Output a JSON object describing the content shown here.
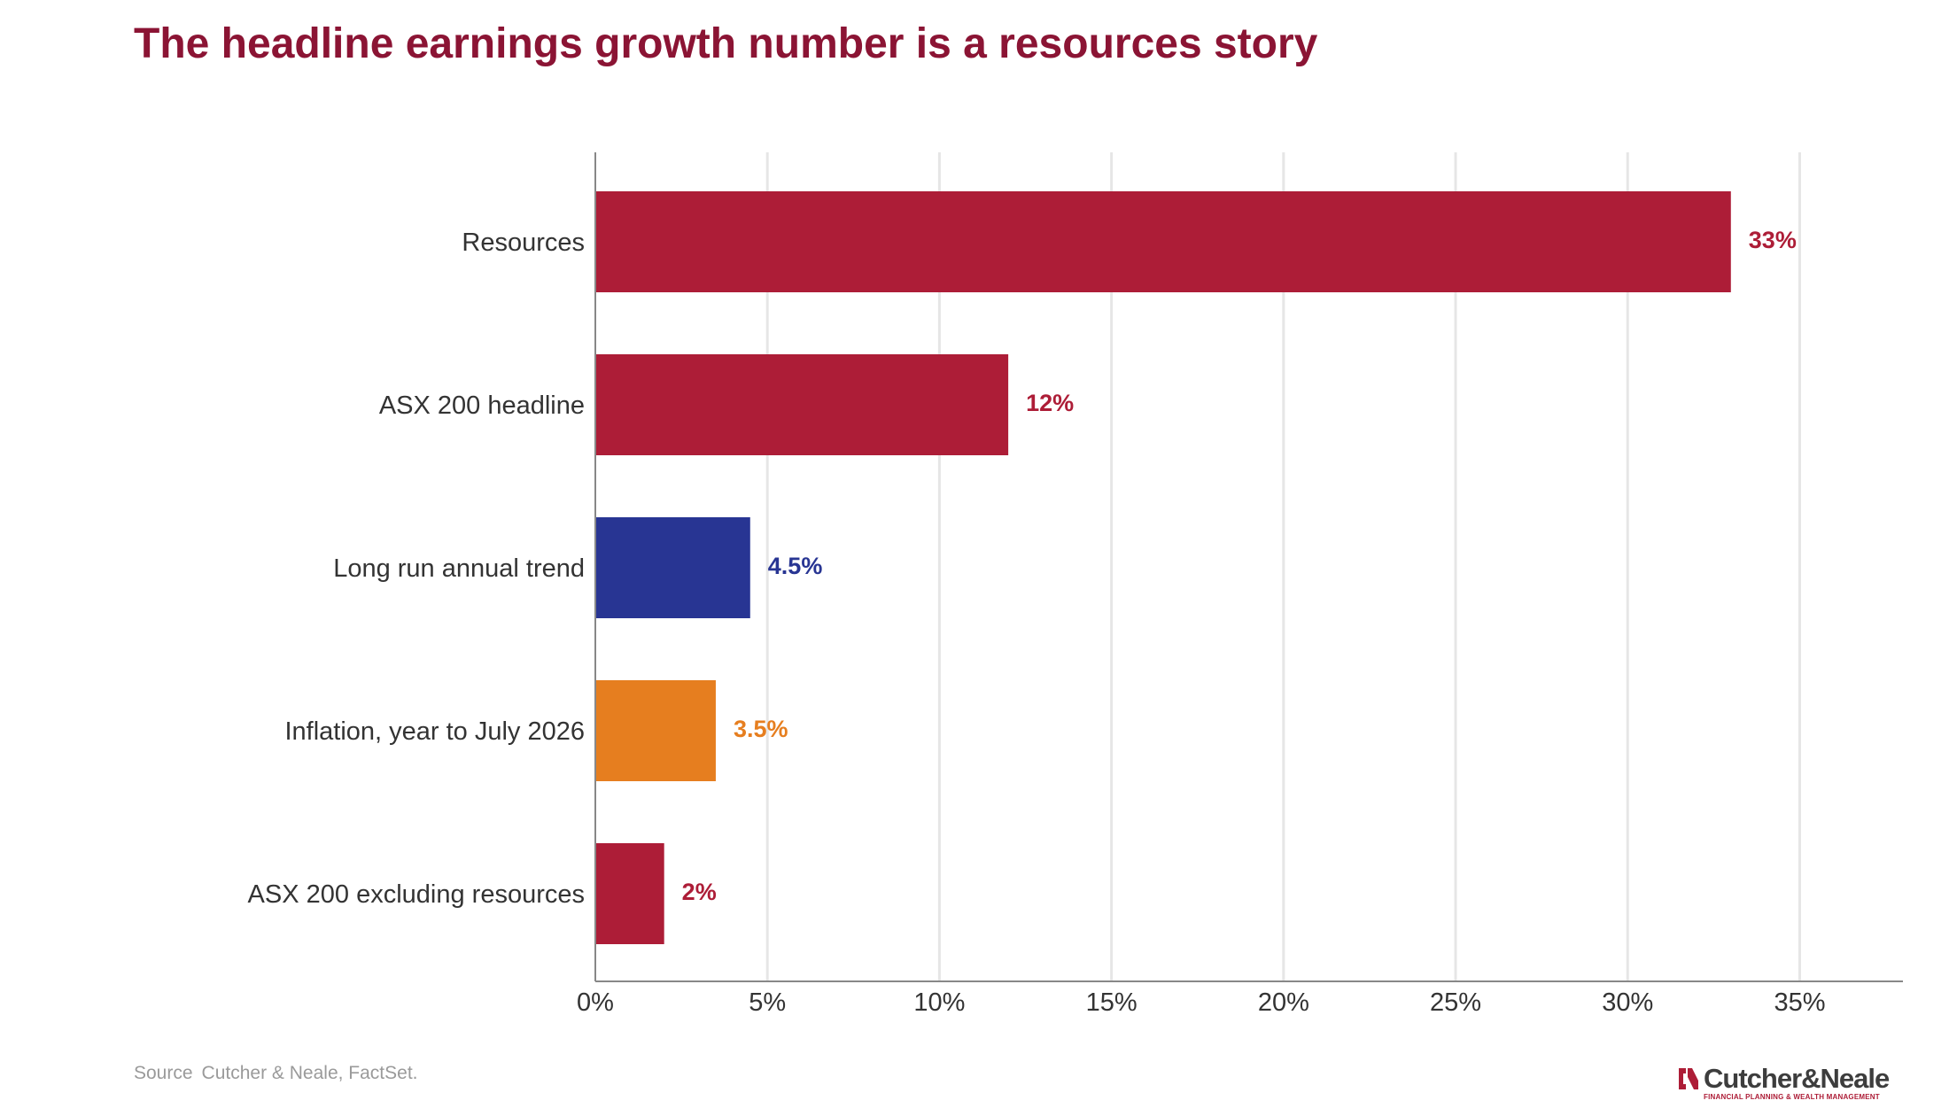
{
  "title": "The headline earnings growth number is a resources story",
  "source": {
    "label": "Source",
    "text": "Cutcher & Neale, FactSet."
  },
  "logo": {
    "name": "Cutcher&Neale",
    "tagline": "FINANCIAL PLANNING & WEALTH MANAGEMENT"
  },
  "chart_data": {
    "type": "bar",
    "orientation": "horizontal",
    "categories": [
      "Resources",
      "ASX 200 headline",
      "Long run annual trend",
      "Inflation, year to July 2026",
      "ASX 200 excluding resources"
    ],
    "values": [
      33,
      12,
      4.5,
      3.5,
      2
    ],
    "data_labels": [
      "33%",
      "12%",
      "4.5%",
      "3.5%",
      "2%"
    ],
    "colors": [
      "#AD1D37",
      "#AD1D37",
      "#283593",
      "#E67E1F",
      "#AD1D37"
    ],
    "xlim": [
      0,
      38
    ],
    "xticks": [
      0,
      5,
      10,
      15,
      20,
      25,
      30,
      35
    ],
    "xtick_labels": [
      "0%",
      "5%",
      "10%",
      "15%",
      "20%",
      "25%",
      "30%",
      "35%"
    ],
    "grid": "vertical",
    "legend": "none"
  }
}
